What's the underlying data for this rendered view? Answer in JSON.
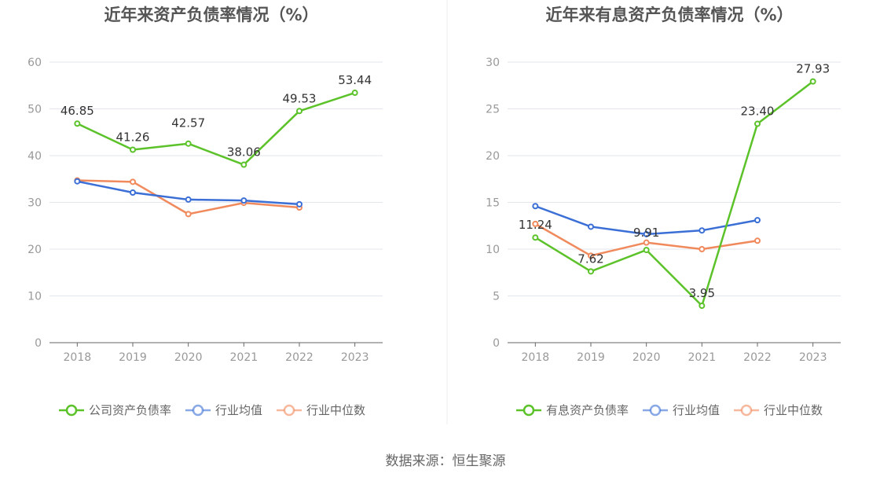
{
  "source_text": "数据来源：恒生聚源",
  "chart_data": [
    {
      "type": "line",
      "title": "近年来资产负债率情况（%）",
      "x": [
        "2018",
        "2019",
        "2020",
        "2021",
        "2022",
        "2023"
      ],
      "yticks": [
        "0",
        "10",
        "20",
        "30",
        "40",
        "50",
        "60"
      ],
      "ylim": [
        0,
        60
      ],
      "grid": true,
      "legend_position": "bottom",
      "series": [
        {
          "name": "公司资产负债率",
          "color": "#5cc22a",
          "labels": true,
          "values": [
            46.85,
            41.26,
            42.57,
            38.06,
            49.53,
            53.44
          ],
          "value_labels": [
            "46.85",
            "41.26",
            "42.57",
            "38.06",
            "49.53",
            "53.44"
          ]
        },
        {
          "name": "行业均值",
          "color": "#3b6fd6",
          "labels": false,
          "values": [
            34.5,
            32.1,
            30.6,
            30.4,
            29.6,
            null
          ]
        },
        {
          "name": "行业中位数",
          "color": "#f08a5d",
          "labels": false,
          "values": [
            34.7,
            34.4,
            27.5,
            29.9,
            28.9,
            null
          ]
        }
      ]
    },
    {
      "type": "line",
      "title": "近年来有息资产负债率情况（%）",
      "x": [
        "2018",
        "2019",
        "2020",
        "2021",
        "2022",
        "2023"
      ],
      "yticks": [
        "0",
        "5",
        "10",
        "15",
        "20",
        "25",
        "30"
      ],
      "ylim": [
        0,
        30
      ],
      "grid": true,
      "legend_position": "bottom",
      "series": [
        {
          "name": "有息资产负债率",
          "color": "#5cc22a",
          "labels": true,
          "values": [
            11.24,
            7.62,
            9.91,
            3.95,
            23.4,
            27.93
          ],
          "value_labels": [
            "11.24",
            "7.62",
            "9.91",
            "3.95",
            "23.40",
            "27.93"
          ]
        },
        {
          "name": "行业均值",
          "color": "#3b6fd6",
          "labels": false,
          "values": [
            14.6,
            12.4,
            11.6,
            12.0,
            13.1,
            null
          ]
        },
        {
          "name": "行业中位数",
          "color": "#f08a5d",
          "labels": false,
          "values": [
            12.7,
            9.3,
            10.7,
            10.0,
            10.9,
            null
          ]
        }
      ]
    }
  ]
}
